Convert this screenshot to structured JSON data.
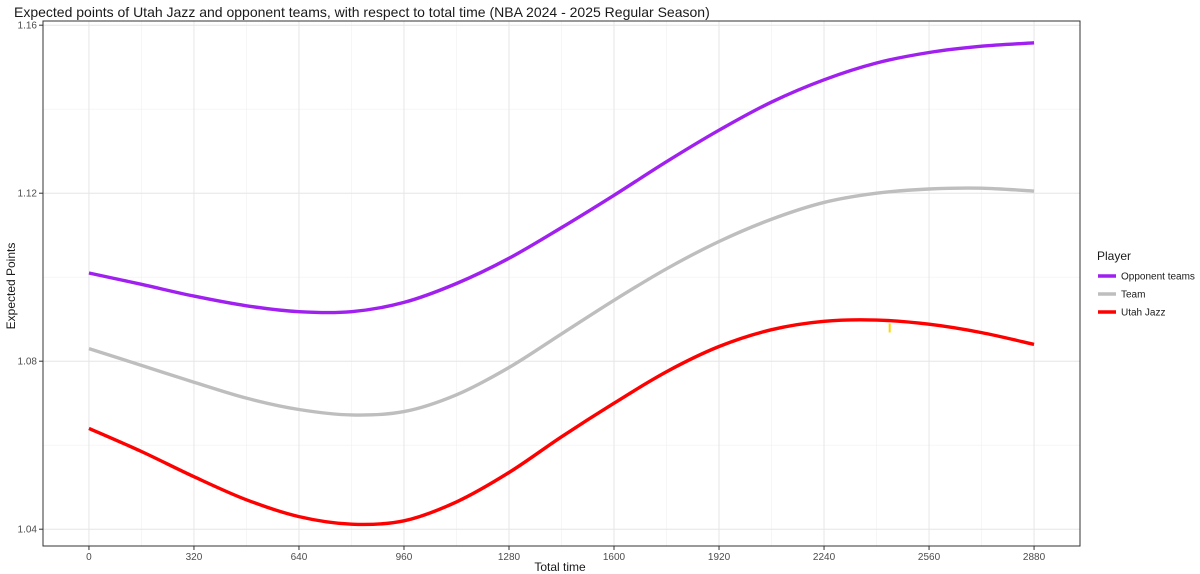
{
  "chart_data": {
    "type": "line",
    "title": "Expected points of Utah Jazz and opponent teams, with respect to total time (NBA 2024 - 2025 Regular Season)",
    "xlabel": "Total time",
    "ylabel": "Expected Points",
    "xlim": [
      -140,
      3020
    ],
    "ylim": [
      1.036,
      1.161
    ],
    "x_ticks": [
      0,
      320,
      640,
      960,
      1280,
      1600,
      1920,
      2240,
      2560,
      2880
    ],
    "x_tick_labels": [
      "0",
      "320",
      "640",
      "960",
      "1280",
      "1600",
      "1920",
      "2240",
      "2560",
      "2880"
    ],
    "y_ticks": [
      1.04,
      1.08,
      1.12,
      1.16
    ],
    "y_tick_labels": [
      "1.04",
      "1.08",
      "1.12",
      "1.16"
    ],
    "grid": true,
    "legend": {
      "title": "Player",
      "position": "right"
    },
    "x": [
      0,
      160,
      320,
      480,
      640,
      800,
      960,
      1120,
      1280,
      1440,
      1600,
      1760,
      1920,
      2080,
      2240,
      2400,
      2560,
      2720,
      2880
    ],
    "series": [
      {
        "name": "Opponent teams",
        "color": "#a020f0",
        "values": [
          1.101,
          1.0983,
          1.0955,
          1.0932,
          1.0918,
          1.0918,
          1.094,
          1.0985,
          1.1045,
          1.1118,
          1.1195,
          1.1275,
          1.135,
          1.1417,
          1.147,
          1.151,
          1.1535,
          1.155,
          1.1558
        ]
      },
      {
        "name": "Team",
        "color": "#bebebe",
        "values": [
          1.083,
          1.079,
          1.075,
          1.0712,
          1.0685,
          1.0672,
          1.068,
          1.072,
          1.0785,
          1.0865,
          1.0945,
          1.102,
          1.1085,
          1.1138,
          1.1178,
          1.12,
          1.121,
          1.1212,
          1.1205
        ]
      },
      {
        "name": "Utah Jazz",
        "color": "#ff0000",
        "values": [
          1.064,
          1.0585,
          1.0525,
          1.047,
          1.043,
          1.0412,
          1.042,
          1.0465,
          1.0535,
          1.062,
          1.07,
          1.0775,
          1.0835,
          1.0875,
          1.0895,
          1.0898,
          1.0888,
          1.0868,
          1.084
        ]
      }
    ],
    "annotations": [
      {
        "type": "mark",
        "x": 2440,
        "y": 1.0885,
        "color": "#ffd700"
      }
    ]
  }
}
